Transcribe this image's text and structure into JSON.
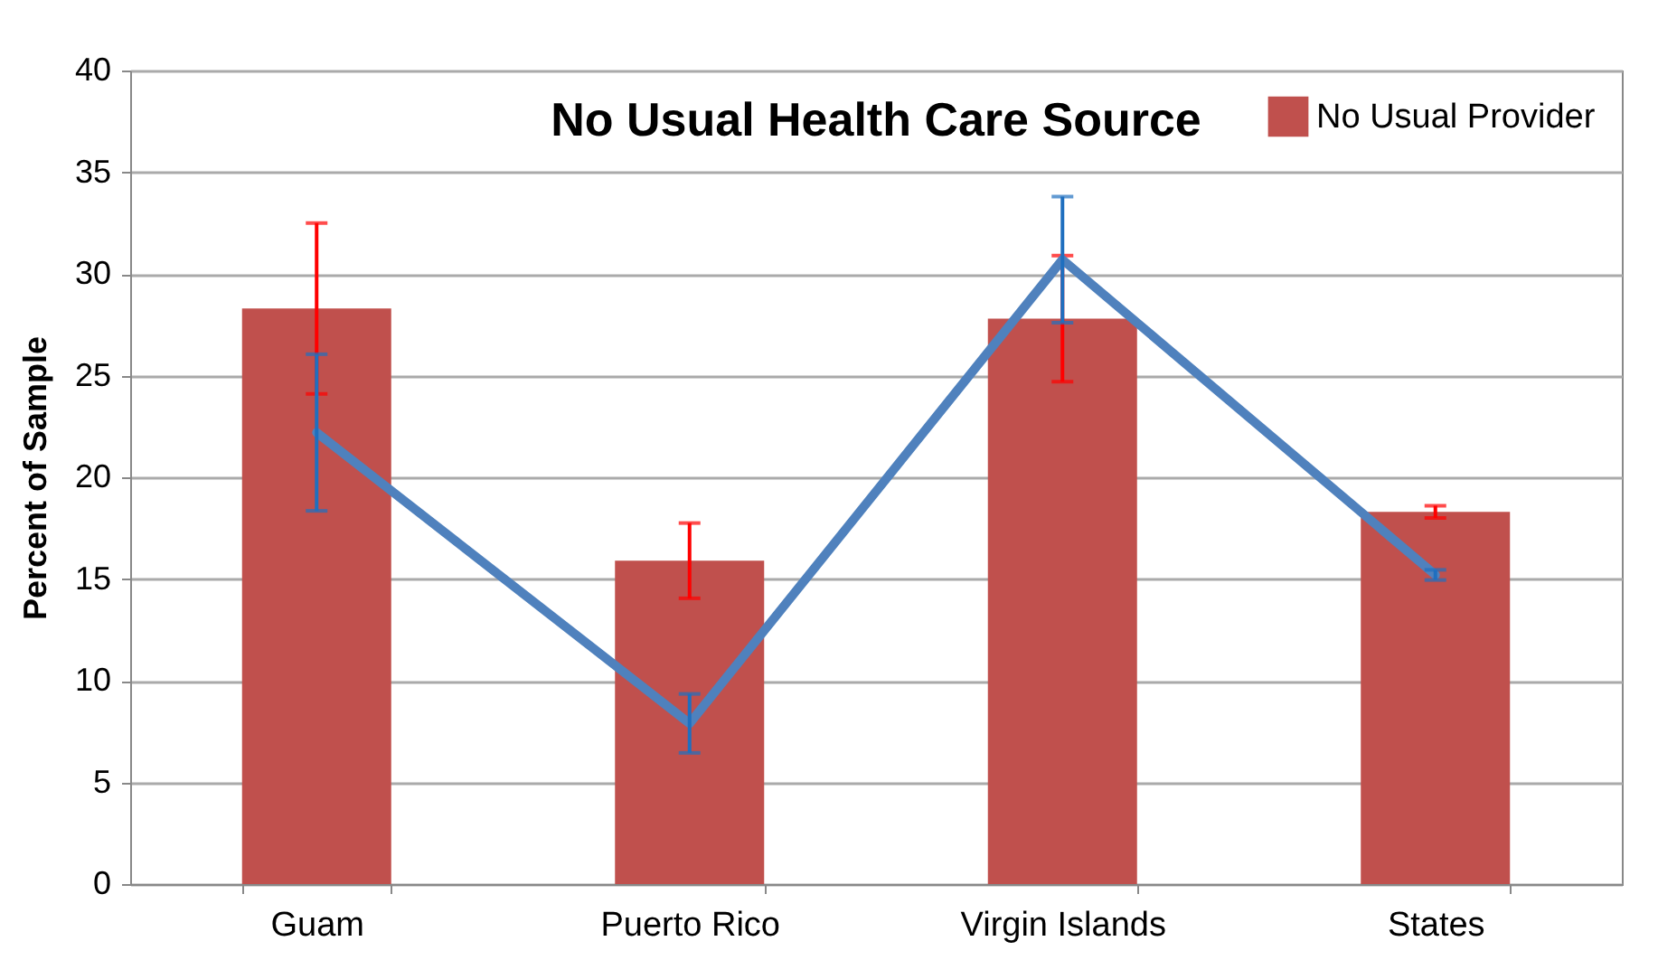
{
  "chart_data": {
    "type": "bar",
    "title": "No Usual Health Care Source",
    "ylabel": "Percent of Sample",
    "categories": [
      "Guam",
      "Puerto Rico",
      "Virgin Islands",
      "States"
    ],
    "series": [
      {
        "name": "No Usual Provider",
        "color": "#c0504d",
        "values": [
          28.3,
          15.9,
          27.8,
          18.3
        ],
        "errors": [
          4.2,
          1.85,
          3.1,
          0.3
        ]
      },
      {
        "type": "line",
        "color": "#4f81bd",
        "values": [
          22.2,
          7.9,
          30.7,
          15.2
        ],
        "errors": [
          3.85,
          1.45,
          3.1,
          0.25
        ]
      }
    ],
    "ylim": [
      0,
      40
    ],
    "yticks": [
      0,
      5,
      10,
      15,
      20,
      25,
      30,
      35,
      40
    ],
    "grid": "y",
    "legend": "top right"
  }
}
